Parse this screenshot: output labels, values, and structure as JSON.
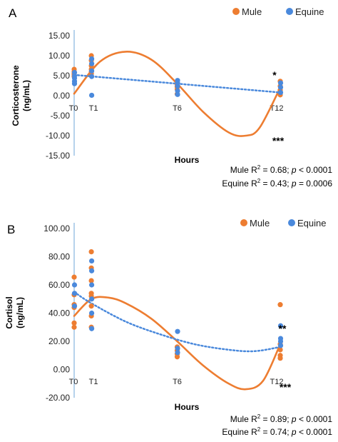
{
  "chart_data": [
    {
      "type": "scatter",
      "panel_label": "A",
      "ylabel_lines": [
        "Corticosterone",
        "(ng/mL)"
      ],
      "xlabel": "Hours",
      "ylim": [
        -15,
        15
      ],
      "yticks": [
        "15.00",
        "10.00",
        "5.00",
        "0.00",
        "-5.00",
        "-10.00",
        "-15.00"
      ],
      "ytick_values": [
        15,
        10,
        5,
        0,
        -5,
        -10,
        -15
      ],
      "x_time_points": [
        "T0",
        "T1",
        "T6",
        "T12"
      ],
      "x_hours": [
        0,
        1,
        6,
        12
      ],
      "legend_position": "top-right",
      "legend": [
        "Mule",
        "Equine"
      ],
      "series": [
        {
          "name": "Mule",
          "color": "#ED7D31",
          "trendline": "polynomial",
          "trend_points": [
            [
              0,
              0.5
            ],
            [
              1.5,
              8.5
            ],
            [
              3,
              11
            ],
            [
              4.5,
              9
            ],
            [
              6,
              3
            ],
            [
              7.5,
              -4
            ],
            [
              9,
              -9.2
            ],
            [
              10,
              -10
            ],
            [
              10.8,
              -8
            ],
            [
              12,
              2
            ]
          ],
          "points": [
            [
              0,
              6.6
            ],
            [
              0,
              6
            ],
            [
              0,
              5.5
            ],
            [
              0,
              5.2
            ],
            [
              0,
              4.8
            ],
            [
              1,
              10
            ],
            [
              1,
              8.8
            ],
            [
              1,
              7.5
            ],
            [
              1,
              6.6
            ],
            [
              1,
              6
            ],
            [
              1,
              5.5
            ],
            [
              6,
              2.8
            ],
            [
              6,
              2.2
            ],
            [
              6,
              1.6
            ],
            [
              6,
              0.4
            ],
            [
              12,
              3.6
            ],
            [
              12,
              2.4
            ],
            [
              12,
              1.4
            ],
            [
              12,
              0.2
            ]
          ]
        },
        {
          "name": "Equine",
          "color": "#4A89DC",
          "trendline": "linear-dotted",
          "trend_points": [
            [
              0,
              5.2
            ],
            [
              12,
              0.8
            ]
          ],
          "points": [
            [
              0,
              5.8
            ],
            [
              0,
              5
            ],
            [
              0,
              4.4
            ],
            [
              0,
              3.6
            ],
            [
              0,
              3
            ],
            [
              1,
              9.2
            ],
            [
              1,
              8
            ],
            [
              1,
              6.2
            ],
            [
              1,
              4.8
            ],
            [
              1,
              0.1
            ],
            [
              6,
              3.8
            ],
            [
              6,
              3.2
            ],
            [
              6,
              2.4
            ],
            [
              6,
              1.2
            ],
            [
              6,
              0.3
            ],
            [
              12,
              3.2
            ],
            [
              12,
              2.1
            ],
            [
              12,
              0.8
            ]
          ]
        }
      ],
      "significance": [
        {
          "label": "*",
          "hours": 11.4,
          "value": 5.8
        },
        {
          "label": "***",
          "hours": 11.1,
          "value": -13
        }
      ],
      "stats": [
        {
          "prefix": "Mule R",
          "exp": "2",
          "mid": " = 0.68; ",
          "p": "p",
          "suffix": " < 0.0001"
        },
        {
          "prefix": "Equine R",
          "exp": "2",
          "mid": " = 0.43; ",
          "p": "p",
          "suffix": " = 0.0006"
        }
      ]
    },
    {
      "type": "scatter",
      "panel_label": "B",
      "ylabel_lines": [
        "Cortisol",
        "(ng/mL)"
      ],
      "xlabel": "Hours",
      "ylim": [
        -20,
        100
      ],
      "yticks": [
        "100.00",
        "80.00",
        "60.00",
        "40.00",
        "20.00",
        "0.00",
        "-20.00"
      ],
      "ytick_values": [
        100,
        80,
        60,
        40,
        20,
        0,
        -20
      ],
      "x_time_points": [
        "T0",
        "T1",
        "T6",
        "T12"
      ],
      "x_hours": [
        0,
        1,
        6,
        12
      ],
      "legend_position": "top-right",
      "legend": [
        "Mule",
        "Equine"
      ],
      "series": [
        {
          "name": "Mule",
          "color": "#ED7D31",
          "trendline": "polynomial",
          "trend_points": [
            [
              0,
              38
            ],
            [
              1,
              50
            ],
            [
              2,
              51
            ],
            [
              3,
              47
            ],
            [
              4.5,
              36
            ],
            [
              6,
              20
            ],
            [
              7.5,
              3
            ],
            [
              9,
              -10
            ],
            [
              10,
              -14
            ],
            [
              11,
              -8
            ],
            [
              12,
              18
            ]
          ],
          "points": [
            [
              0,
              65.5
            ],
            [
              0,
              53
            ],
            [
              0,
              46
            ],
            [
              0,
              44
            ],
            [
              0,
              33
            ],
            [
              0,
              30
            ],
            [
              1,
              83.5
            ],
            [
              1,
              72
            ],
            [
              1,
              63
            ],
            [
              1,
              54
            ],
            [
              1,
              52
            ],
            [
              1,
              45
            ],
            [
              1,
              38
            ],
            [
              1,
              30
            ],
            [
              6,
              16
            ],
            [
              6,
              13.5
            ],
            [
              6,
              11
            ],
            [
              6,
              9
            ],
            [
              12,
              46
            ],
            [
              12,
              18
            ],
            [
              12,
              14
            ],
            [
              12,
              10
            ],
            [
              12,
              8
            ]
          ]
        },
        {
          "name": "Equine",
          "color": "#4A89DC",
          "trendline": "polynomial-dotted",
          "trend_points": [
            [
              0,
              55
            ],
            [
              1,
              47
            ],
            [
              3,
              34
            ],
            [
              5,
              25
            ],
            [
              7,
              18
            ],
            [
              9,
              14
            ],
            [
              10.5,
              13
            ],
            [
              12,
              16
            ]
          ],
          "points": [
            [
              0,
              60
            ],
            [
              0,
              54
            ],
            [
              0,
              45
            ],
            [
              1,
              77
            ],
            [
              1,
              70
            ],
            [
              1,
              60
            ],
            [
              1,
              50
            ],
            [
              1,
              40
            ],
            [
              1,
              29
            ],
            [
              6,
              27
            ],
            [
              6,
              15
            ],
            [
              6,
              12
            ],
            [
              12,
              31
            ],
            [
              12,
              22
            ],
            [
              12,
              20
            ],
            [
              12,
              17
            ]
          ]
        }
      ],
      "significance": [
        {
          "label": "**",
          "hours": 11.1,
          "value": 20
        },
        {
          "label": "***",
          "hours": 10.8,
          "value": -17
        }
      ],
      "stats": [
        {
          "prefix": "Mule R",
          "exp": "2",
          "mid": " = 0.89; ",
          "p": "p",
          "suffix": " < 0.0001"
        },
        {
          "prefix": "Equine R",
          "exp": "2",
          "mid": " = 0.74; ",
          "p": "p",
          "suffix": " < 0.0001"
        }
      ]
    }
  ]
}
